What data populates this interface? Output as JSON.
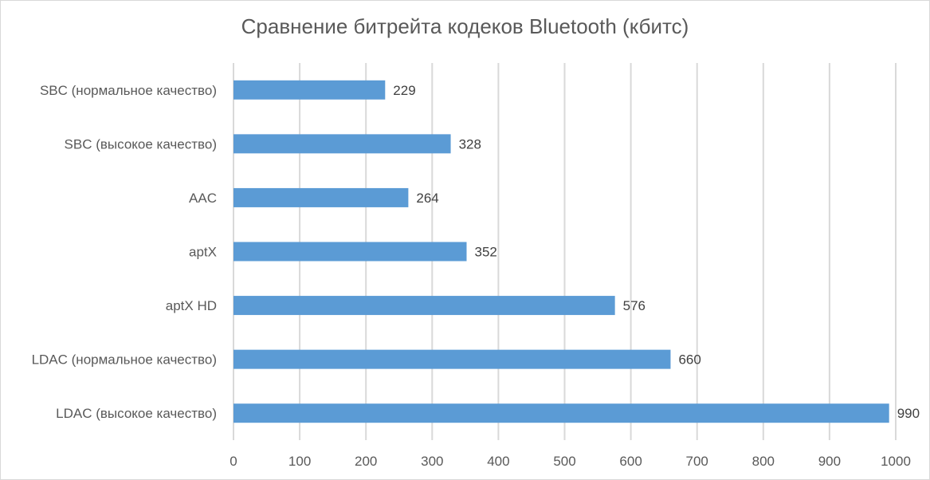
{
  "chart_data": {
    "type": "bar",
    "orientation": "horizontal",
    "title": "Сравнение битрейта кодеков Bluetooth (кбитс)",
    "categories": [
      "SBC (нормальное качество)",
      "SBC (высокое качество)",
      "AAC",
      "aptX",
      "aptX HD",
      "LDAC (нормальное качество)",
      "LDAC (высокое качество)"
    ],
    "values": [
      229,
      328,
      264,
      352,
      576,
      660,
      990
    ],
    "xlim": [
      0,
      1000
    ],
    "xticks": [
      "0",
      "100",
      "200",
      "300",
      "400",
      "500",
      "600",
      "700",
      "800",
      "900",
      "1000"
    ],
    "grid": true,
    "data_labels": true,
    "bar_color": "#5b9bd5",
    "grid_color": "#d9d9d9"
  }
}
